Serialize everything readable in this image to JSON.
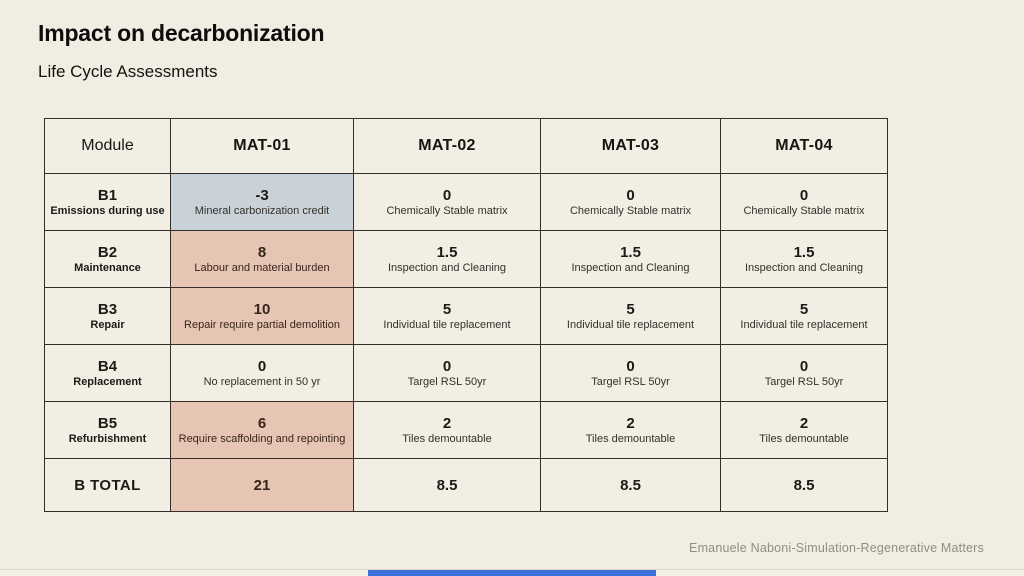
{
  "page": {
    "title": "Impact on decarbonization",
    "subtitle": "Life Cycle Assessments",
    "footer_credit": "Emanuele Naboni-Simulation-Regenerative Matters"
  },
  "colors": {
    "background": "#f1ede2",
    "highlight_blue": "#c9d2d8",
    "highlight_pink": "#e6c5b5",
    "table_border": "#33302a",
    "progress_bar_blue": "#3a71d8"
  },
  "table": {
    "columns": [
      "Module",
      "MAT-01",
      "MAT-02",
      "MAT-03",
      "MAT-04"
    ],
    "rows": [
      {
        "code": "B1",
        "label": "Emissions during use",
        "cells": [
          {
            "value": "-3",
            "note": "Mineral carbonization credit",
            "highlight": "blue"
          },
          {
            "value": "0",
            "note": "Chemically Stable matrix"
          },
          {
            "value": "0",
            "note": "Chemically Stable matrix"
          },
          {
            "value": "0",
            "note": "Chemically Stable matrix"
          }
        ]
      },
      {
        "code": "B2",
        "label": "Maintenance",
        "cells": [
          {
            "value": "8",
            "note": "Labour and material burden",
            "highlight": "pink"
          },
          {
            "value": "1.5",
            "note": "Inspection and Cleaning"
          },
          {
            "value": "1.5",
            "note": "Inspection and Cleaning"
          },
          {
            "value": "1.5",
            "note": "Inspection and Cleaning"
          }
        ]
      },
      {
        "code": "B3",
        "label": "Repair",
        "cells": [
          {
            "value": "10",
            "note": "Repair require partial demolition",
            "highlight": "pink"
          },
          {
            "value": "5",
            "note": "Individual tile replacement"
          },
          {
            "value": "5",
            "note": "Individual tile replacement"
          },
          {
            "value": "5",
            "note": "Individual tile replacement"
          }
        ]
      },
      {
        "code": "B4",
        "label": "Replacement",
        "cells": [
          {
            "value": "0",
            "note": "No replacement in 50 yr"
          },
          {
            "value": "0",
            "note": "Targel RSL 50yr"
          },
          {
            "value": "0",
            "note": "Targel RSL 50yr"
          },
          {
            "value": "0",
            "note": "Targel RSL 50yr"
          }
        ]
      },
      {
        "code": "B5",
        "label": "Refurbishment",
        "cells": [
          {
            "value": "6",
            "note": "Require scaffolding and repointing",
            "highlight": "pink"
          },
          {
            "value": "2",
            "note": "Tiles demountable"
          },
          {
            "value": "2",
            "note": "Tiles demountable"
          },
          {
            "value": "2",
            "note": "Tiles demountable"
          }
        ]
      }
    ],
    "total": {
      "label": "B TOTAL",
      "cells": [
        {
          "value": "21",
          "highlight": "pink"
        },
        {
          "value": "8.5"
        },
        {
          "value": "8.5"
        },
        {
          "value": "8.5"
        }
      ]
    }
  }
}
